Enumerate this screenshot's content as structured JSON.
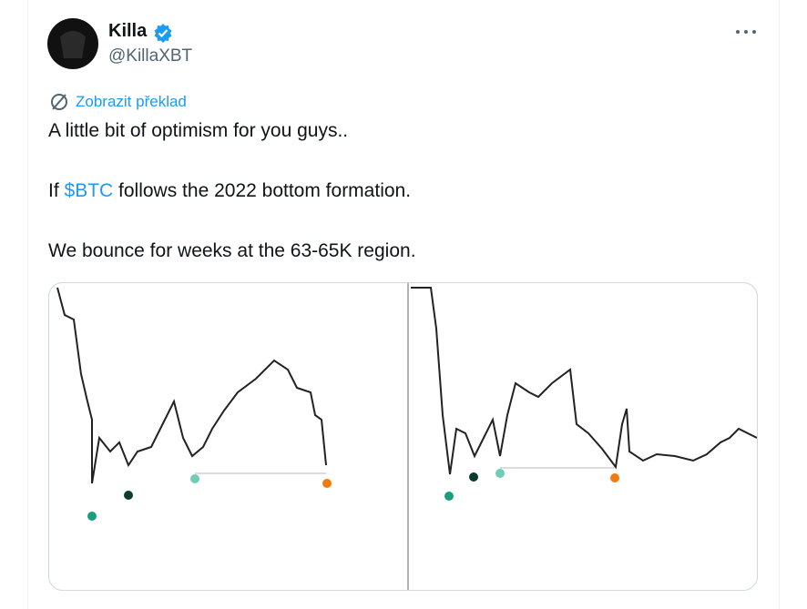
{
  "author": {
    "name": "Killa",
    "handle": "@KillaXBT"
  },
  "translate": "Zobrazit překlad",
  "tweet": {
    "line1": "A little bit of optimism for you guys..",
    "line2": {
      "before": "If ",
      "cashtag": "$BTC",
      "after": " follows the 2022 bottom formation."
    },
    "line3": "We bounce for weeks at the 63-65K region."
  }
}
